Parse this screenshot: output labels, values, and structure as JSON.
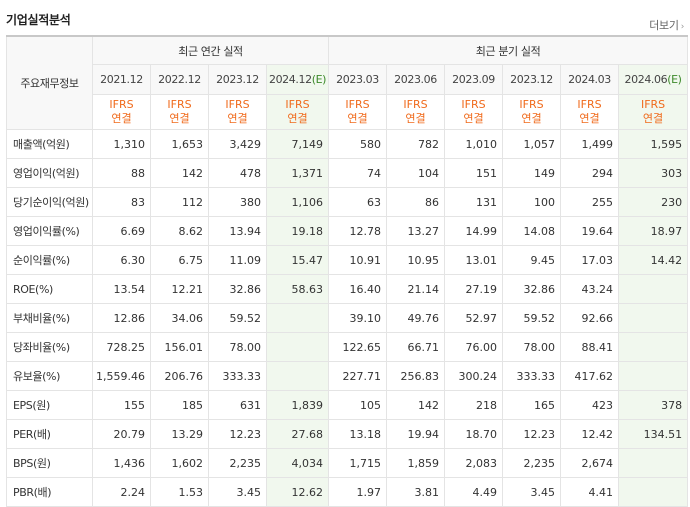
{
  "header": {
    "title": "기업실적분석",
    "more_label": "더보기",
    "more_chevron": "›"
  },
  "table": {
    "corner_label": "주요재무정보",
    "groups": {
      "annual": "최근 연간 실적",
      "quarterly": "최근 분기 실적"
    },
    "periods": [
      {
        "label": "2021.12",
        "est": false
      },
      {
        "label": "2022.12",
        "est": false
      },
      {
        "label": "2023.12",
        "est": false
      },
      {
        "label": "2024.12",
        "est": true
      },
      {
        "label": "2023.03",
        "est": false
      },
      {
        "label": "2023.06",
        "est": false
      },
      {
        "label": "2023.09",
        "est": false
      },
      {
        "label": "2023.12",
        "est": false
      },
      {
        "label": "2024.03",
        "est": false
      },
      {
        "label": "2024.06",
        "est": true
      }
    ],
    "est_mark": "(E)",
    "standard_top": "IFRS",
    "standard_bottom": "연결",
    "rows": [
      {
        "label": "매출액(억원)",
        "values": [
          "1,310",
          "1,653",
          "3,429",
          "7,149",
          "580",
          "782",
          "1,010",
          "1,057",
          "1,499",
          "1,595"
        ]
      },
      {
        "label": "영업이익(억원)",
        "values": [
          "88",
          "142",
          "478",
          "1,371",
          "74",
          "104",
          "151",
          "149",
          "294",
          "303"
        ]
      },
      {
        "label": "당기순이익(억원)",
        "values": [
          "83",
          "112",
          "380",
          "1,106",
          "63",
          "86",
          "131",
          "100",
          "255",
          "230"
        ]
      },
      {
        "label": "영업이익률(%)",
        "values": [
          "6.69",
          "8.62",
          "13.94",
          "19.18",
          "12.78",
          "13.27",
          "14.99",
          "14.08",
          "19.64",
          "18.97"
        ]
      },
      {
        "label": "순이익률(%)",
        "values": [
          "6.30",
          "6.75",
          "11.09",
          "15.47",
          "10.91",
          "10.95",
          "13.01",
          "9.45",
          "17.03",
          "14.42"
        ]
      },
      {
        "label": "ROE(%)",
        "values": [
          "13.54",
          "12.21",
          "32.86",
          "58.63",
          "16.40",
          "21.14",
          "27.19",
          "32.86",
          "43.24",
          ""
        ]
      },
      {
        "label": "부채비율(%)",
        "values": [
          "12.86",
          "34.06",
          "59.52",
          "",
          "39.10",
          "49.76",
          "52.97",
          "59.52",
          "92.66",
          ""
        ]
      },
      {
        "label": "당좌비율(%)",
        "values": [
          "728.25",
          "156.01",
          "78.00",
          "",
          "122.65",
          "66.71",
          "76.00",
          "78.00",
          "88.41",
          ""
        ]
      },
      {
        "label": "유보율(%)",
        "values": [
          "1,559.46",
          "206.76",
          "333.33",
          "",
          "227.71",
          "256.83",
          "300.24",
          "333.33",
          "417.62",
          ""
        ]
      },
      {
        "label": "EPS(원)",
        "values": [
          "155",
          "185",
          "631",
          "1,839",
          "105",
          "142",
          "218",
          "165",
          "423",
          "378"
        ]
      },
      {
        "label": "PER(배)",
        "values": [
          "20.79",
          "13.29",
          "12.23",
          "27.68",
          "13.18",
          "19.94",
          "18.70",
          "12.23",
          "12.42",
          "134.51"
        ]
      },
      {
        "label": "BPS(원)",
        "values": [
          "1,436",
          "1,602",
          "2,235",
          "4,034",
          "1,715",
          "1,859",
          "2,083",
          "2,235",
          "2,674",
          ""
        ]
      },
      {
        "label": "PBR(배)",
        "values": [
          "2.24",
          "1.53",
          "3.45",
          "12.62",
          "1.97",
          "3.81",
          "4.49",
          "3.45",
          "4.41",
          ""
        ]
      }
    ]
  }
}
